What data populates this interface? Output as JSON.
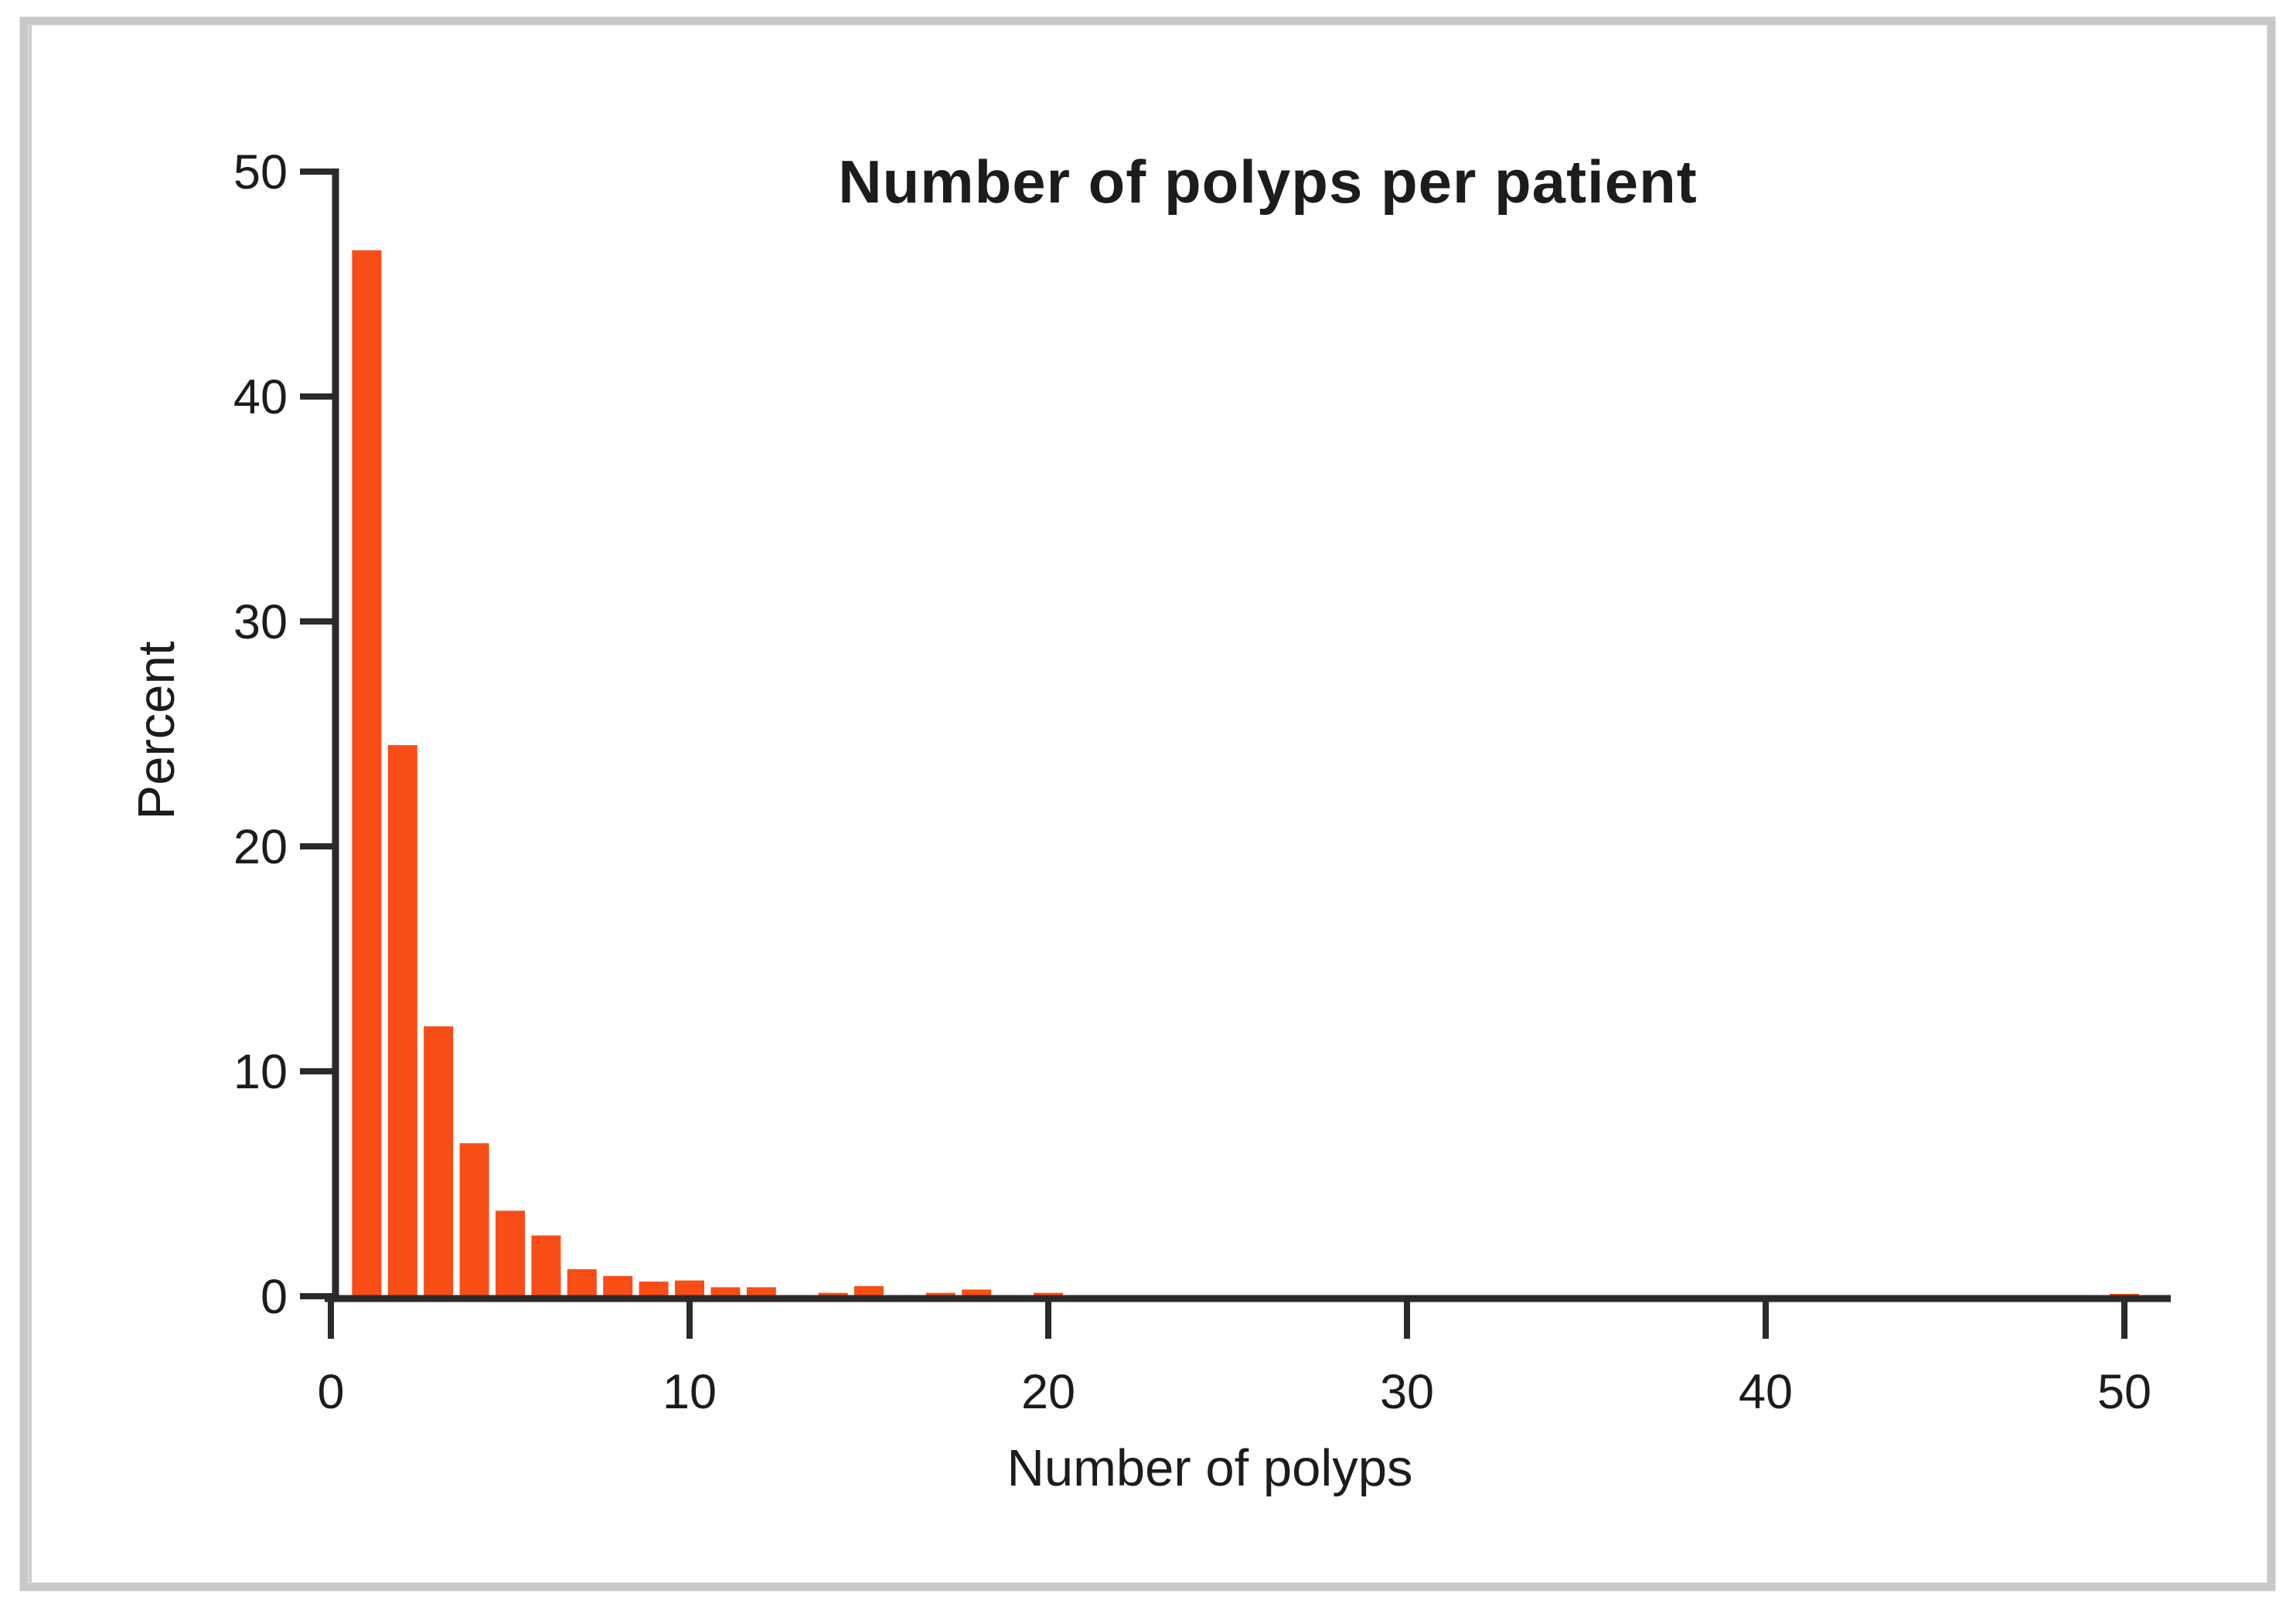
{
  "chart_data": {
    "type": "bar",
    "title": "Number of polyps per patient",
    "xlabel": "Number of polyps",
    "ylabel": "Percent",
    "xlim": [
      0,
      52
    ],
    "ylim": [
      0,
      50
    ],
    "x_ticks": [
      0,
      10,
      20,
      30,
      40,
      50
    ],
    "y_ticks": [
      0,
      10,
      20,
      30,
      40,
      50
    ],
    "grid": false,
    "legend": "none",
    "bar_color": "#F94D18",
    "x": [
      1,
      2,
      3,
      4,
      5,
      6,
      7,
      8,
      9,
      10,
      11,
      12,
      14,
      15,
      17,
      18,
      20,
      50
    ],
    "values": [
      46.5,
      24.5,
      12,
      6.8,
      3.8,
      2.7,
      1.2,
      0.9,
      0.65,
      0.7,
      0.4,
      0.4,
      0.15,
      0.45,
      0.15,
      0.3,
      0.15,
      0.1
    ]
  },
  "colors": {
    "bar": "#F94D18",
    "axis": "#2a2a2a",
    "text": "#1c1c1c",
    "frame_border": "#c8c8c8",
    "background": "#ffffff"
  }
}
